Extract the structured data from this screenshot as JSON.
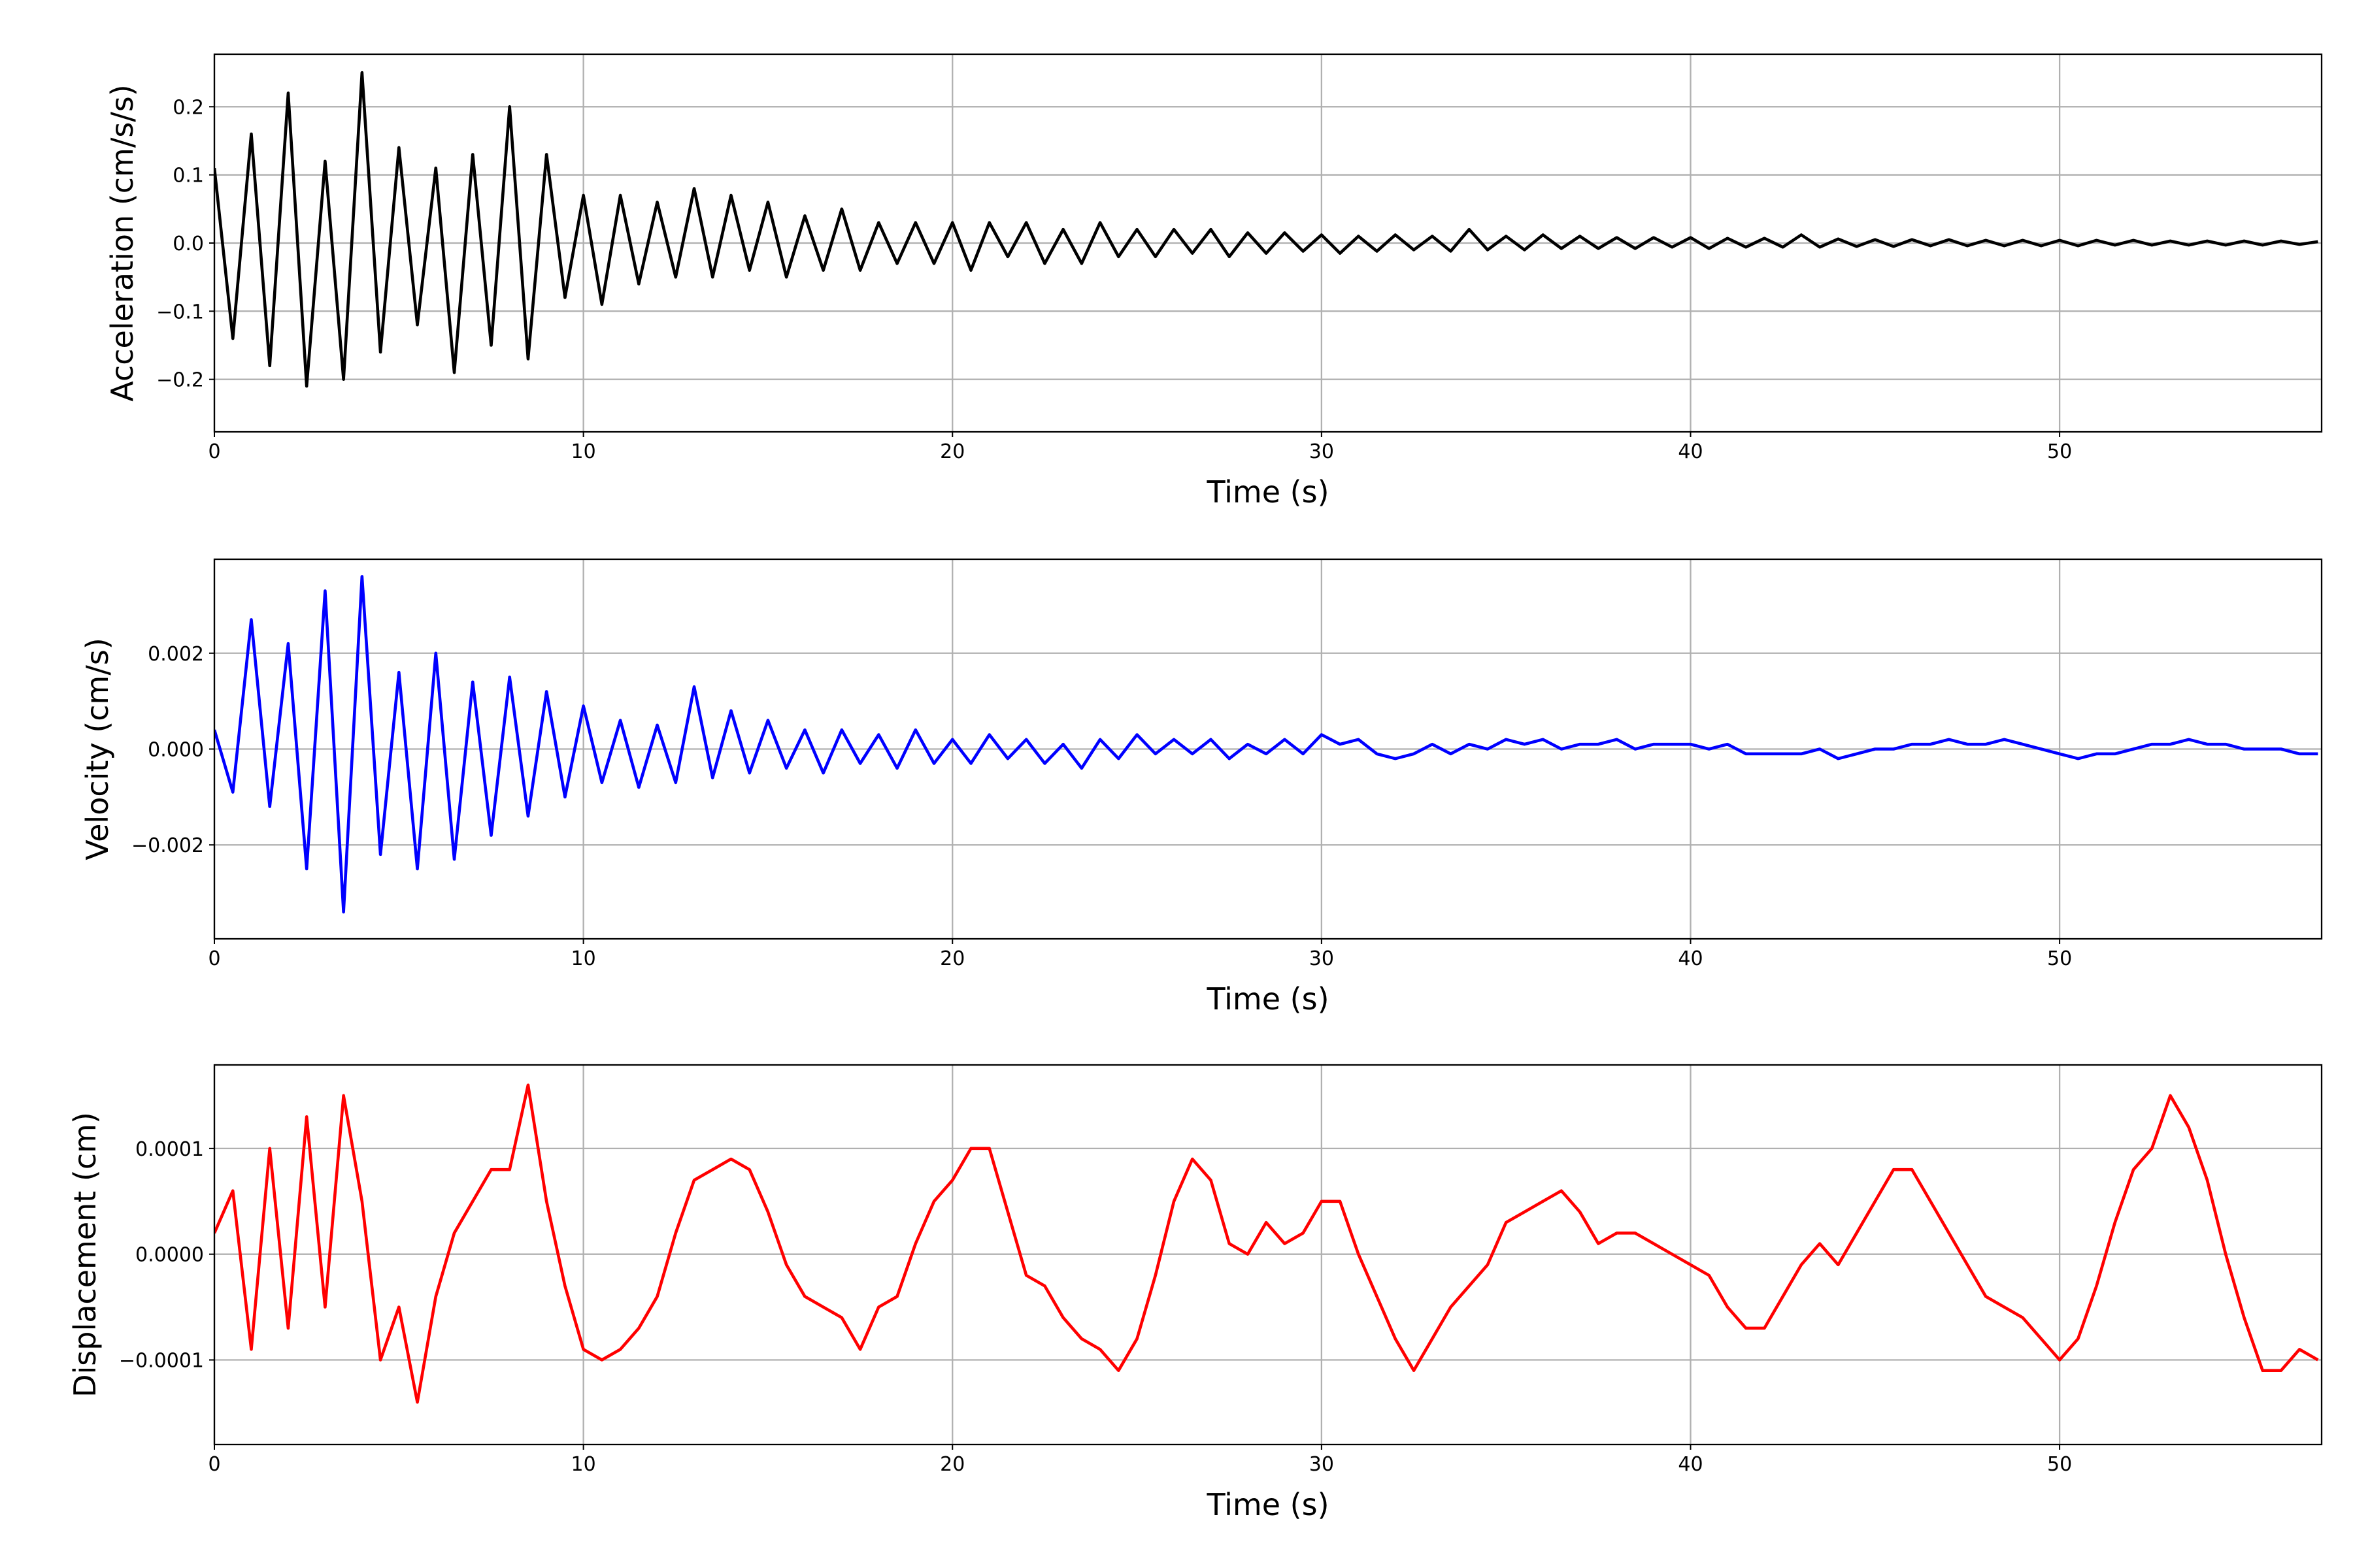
{
  "chart_data": [
    {
      "type": "line",
      "xlabel": "Time (s)",
      "ylabel": "Acceleration (cm/s/s)",
      "color": "#000000",
      "grid": true,
      "xlim": [
        0,
        57.1
      ],
      "xticks": [
        0,
        10,
        20,
        30,
        40,
        50
      ],
      "ylim": [
        -0.277,
        0.277
      ],
      "yticks": [
        {
          "value": -0.2,
          "label": "−0.2"
        },
        {
          "value": -0.1,
          "label": "−0.1"
        },
        {
          "value": 0,
          "label": "0.0"
        },
        0.1,
        0.2
      ],
      "x": [
        0,
        0.5,
        1,
        1.5,
        2,
        2.5,
        3,
        3.5,
        4,
        4.5,
        5,
        5.5,
        6,
        6.5,
        7,
        7.5,
        8,
        8.5,
        9,
        9.5,
        10,
        10.5,
        11,
        11.5,
        12,
        12.5,
        13,
        13.5,
        14,
        14.5,
        15,
        15.5,
        16,
        16.5,
        17,
        17.5,
        18,
        18.5,
        19,
        19.5,
        20,
        20.5,
        21,
        21.5,
        22,
        22.5,
        23,
        23.5,
        24,
        24.5,
        25,
        25.5,
        26,
        26.5,
        27,
        27.5,
        28,
        28.5,
        29,
        29.5,
        30,
        30.5,
        31,
        31.5,
        32,
        32.5,
        33,
        33.5,
        34,
        34.5,
        35,
        35.5,
        36,
        36.5,
        37,
        37.5,
        38,
        38.5,
        39,
        39.5,
        40,
        40.5,
        41,
        41.5,
        42,
        42.5,
        43,
        43.5,
        44,
        44.5,
        45,
        45.5,
        46,
        46.5,
        47,
        47.5,
        48,
        48.5,
        49,
        49.5,
        50,
        50.5,
        51,
        51.5,
        52,
        52.5,
        53,
        53.5,
        54,
        54.5,
        55,
        55.5,
        56,
        56.5,
        57
      ],
      "values": [
        0.11,
        -0.14,
        0.16,
        -0.18,
        0.22,
        -0.21,
        0.12,
        -0.2,
        0.25,
        -0.16,
        0.14,
        -0.12,
        0.11,
        -0.19,
        0.13,
        -0.15,
        0.2,
        -0.17,
        0.13,
        -0.08,
        0.07,
        -0.09,
        0.07,
        -0.06,
        0.06,
        -0.05,
        0.08,
        -0.05,
        0.07,
        -0.04,
        0.06,
        -0.05,
        0.04,
        -0.04,
        0.05,
        -0.04,
        0.03,
        -0.03,
        0.03,
        -0.03,
        0.03,
        -0.04,
        0.03,
        -0.02,
        0.03,
        -0.03,
        0.02,
        -0.03,
        0.03,
        -0.02,
        0.02,
        -0.02,
        0.02,
        -0.015,
        0.02,
        -0.02,
        0.015,
        -0.015,
        0.015,
        -0.012,
        0.012,
        -0.015,
        0.01,
        -0.012,
        0.012,
        -0.01,
        0.01,
        -0.012,
        0.02,
        -0.01,
        0.01,
        -0.01,
        0.012,
        -0.008,
        0.01,
        -0.008,
        0.008,
        -0.008,
        0.008,
        -0.006,
        0.008,
        -0.008,
        0.007,
        -0.006,
        0.007,
        -0.006,
        0.012,
        -0.006,
        0.006,
        -0.005,
        0.005,
        -0.005,
        0.005,
        -0.004,
        0.005,
        -0.004,
        0.004,
        -0.004,
        0.004,
        -0.004,
        0.004,
        -0.004,
        0.004,
        -0.003,
        0.004,
        -0.003,
        0.003,
        -0.003,
        0.003,
        -0.003,
        0.003,
        -0.003,
        0.003,
        -0.002,
        0.002
      ]
    },
    {
      "type": "line",
      "xlabel": "Time (s)",
      "ylabel": "Velocity (cm/s)",
      "color": "#0000ff",
      "grid": true,
      "xlim": [
        0,
        57.1
      ],
      "xticks": [
        0,
        10,
        20,
        30,
        40,
        50
      ],
      "ylim": [
        -0.00396,
        0.00396
      ],
      "yticks": [
        {
          "value": -0.002,
          "label": "−0.002"
        },
        {
          "value": 0,
          "label": "0.000"
        },
        0.002
      ],
      "x": [
        0,
        0.5,
        1,
        1.5,
        2,
        2.5,
        3,
        3.5,
        4,
        4.5,
        5,
        5.5,
        6,
        6.5,
        7,
        7.5,
        8,
        8.5,
        9,
        9.5,
        10,
        10.5,
        11,
        11.5,
        12,
        12.5,
        13,
        13.5,
        14,
        14.5,
        15,
        15.5,
        16,
        16.5,
        17,
        17.5,
        18,
        18.5,
        19,
        19.5,
        20,
        20.5,
        21,
        21.5,
        22,
        22.5,
        23,
        23.5,
        24,
        24.5,
        25,
        25.5,
        26,
        26.5,
        27,
        27.5,
        28,
        28.5,
        29,
        29.5,
        30,
        30.5,
        31,
        31.5,
        32,
        32.5,
        33,
        33.5,
        34,
        34.5,
        35,
        35.5,
        36,
        36.5,
        37,
        37.5,
        38,
        38.5,
        39,
        39.5,
        40,
        40.5,
        41,
        41.5,
        42,
        42.5,
        43,
        43.5,
        44,
        44.5,
        45,
        45.5,
        46,
        46.5,
        47,
        47.5,
        48,
        48.5,
        49,
        49.5,
        50,
        50.5,
        51,
        51.5,
        52,
        52.5,
        53,
        53.5,
        54,
        54.5,
        55,
        55.5,
        56,
        56.5,
        57
      ],
      "values": [
        0.0004,
        -0.0009,
        0.0027,
        -0.0012,
        0.0022,
        -0.0025,
        0.0033,
        -0.0034,
        0.0036,
        -0.0022,
        0.0016,
        -0.0025,
        0.002,
        -0.0023,
        0.0014,
        -0.0018,
        0.0015,
        -0.0014,
        0.0012,
        -0.001,
        0.0009,
        -0.0007,
        0.0006,
        -0.0008,
        0.0005,
        -0.0007,
        0.0013,
        -0.0006,
        0.0008,
        -0.0005,
        0.0006,
        -0.0004,
        0.0004,
        -0.0005,
        0.0004,
        -0.0003,
        0.0003,
        -0.0004,
        0.0004,
        -0.0003,
        0.0002,
        -0.0003,
        0.0003,
        -0.0002,
        0.0002,
        -0.0003,
        0.0001,
        -0.0004,
        0.0002,
        -0.0002,
        0.0003,
        -0.0001,
        0.0002,
        -0.0001,
        0.0002,
        -0.0002,
        0.0001,
        -0.0001,
        0.0002,
        -0.0001,
        0.0003,
        0.0001,
        0.0002,
        -0.0001,
        -0.0002,
        -0.0001,
        0.0001,
        -0.0001,
        0.0001,
        0,
        0.0002,
        0.0001,
        0.0002,
        0,
        0.0001,
        0.0001,
        0.0002,
        0,
        0.0001,
        0.0001,
        0.0001,
        0,
        0.0001,
        -0.0001,
        -0.0001,
        -0.0001,
        -0.0001,
        0,
        -0.0002,
        -0.0001,
        0,
        0,
        0.0001,
        0.0001,
        0.0002,
        0.0001,
        0.0001,
        0.0002,
        0.0001,
        0,
        -0.0001,
        -0.0002,
        -0.0001,
        -0.0001,
        0,
        0.0001,
        0.0001,
        0.0002,
        0.0001,
        0.0001,
        0,
        0,
        0,
        -0.0001,
        -0.0001
      ]
    },
    {
      "type": "line",
      "xlabel": "Time (s)",
      "ylabel": "Displacement (cm)",
      "color": "#ff0000",
      "grid": true,
      "xlim": [
        0,
        57.1
      ],
      "xticks": [
        0,
        10,
        20,
        30,
        40,
        50
      ],
      "ylim": [
        -0.00018,
        0.000179
      ],
      "yticks": [
        {
          "value": -0.0001,
          "label": "−0.0001"
        },
        {
          "value": 0,
          "label": "0.0000"
        },
        0.0001
      ],
      "x": [
        0,
        0.5,
        1,
        1.5,
        2,
        2.5,
        3,
        3.5,
        4,
        4.5,
        5,
        5.5,
        6,
        6.5,
        7,
        7.5,
        8,
        8.5,
        9,
        9.5,
        10,
        10.5,
        11,
        11.5,
        12,
        12.5,
        13,
        13.5,
        14,
        14.5,
        15,
        15.5,
        16,
        16.5,
        17,
        17.5,
        18,
        18.5,
        19,
        19.5,
        20,
        20.5,
        21,
        21.5,
        22,
        22.5,
        23,
        23.5,
        24,
        24.5,
        25,
        25.5,
        26,
        26.5,
        27,
        27.5,
        28,
        28.5,
        29,
        29.5,
        30,
        30.5,
        31,
        31.5,
        32,
        32.5,
        33,
        33.5,
        34,
        34.5,
        35,
        35.5,
        36,
        36.5,
        37,
        37.5,
        38,
        38.5,
        39,
        39.5,
        40,
        40.5,
        41,
        41.5,
        42,
        42.5,
        43,
        43.5,
        44,
        44.5,
        45,
        45.5,
        46,
        46.5,
        47,
        47.5,
        48,
        48.5,
        49,
        49.5,
        50,
        50.5,
        51,
        51.5,
        52,
        52.5,
        53,
        53.5,
        54,
        54.5,
        55,
        55.5,
        56,
        56.5,
        57
      ],
      "values": [
        2e-05,
        6e-05,
        -9e-05,
        0.0001,
        -7e-05,
        0.00013,
        -5e-05,
        0.00015,
        5e-05,
        -0.0001,
        -5e-05,
        -0.00014,
        -4e-05,
        2e-05,
        5e-05,
        8e-05,
        8e-05,
        0.00016,
        5e-05,
        -3e-05,
        -9e-05,
        -0.0001,
        -9e-05,
        -7e-05,
        -4e-05,
        2e-05,
        7e-05,
        8e-05,
        9e-05,
        8e-05,
        4e-05,
        -1e-05,
        -4e-05,
        -5e-05,
        -6e-05,
        -9e-05,
        -5e-05,
        -4e-05,
        1e-05,
        5e-05,
        7e-05,
        0.0001,
        0.0001,
        4e-05,
        -2e-05,
        -3e-05,
        -6e-05,
        -8e-05,
        -9e-05,
        -0.00011,
        -8e-05,
        -2e-05,
        5e-05,
        9e-05,
        7e-05,
        1e-05,
        0,
        3e-05,
        1e-05,
        2e-05,
        5e-05,
        5e-05,
        0,
        -4e-05,
        -8e-05,
        -0.00011,
        -8e-05,
        -5e-05,
        -3e-05,
        -1e-05,
        3e-05,
        4e-05,
        5e-05,
        6e-05,
        4e-05,
        1e-05,
        2e-05,
        2e-05,
        1e-05,
        0,
        -1e-05,
        -2e-05,
        -5e-05,
        -7e-05,
        -7e-05,
        -4e-05,
        -1e-05,
        1e-05,
        -1e-05,
        2e-05,
        5e-05,
        8e-05,
        8e-05,
        5e-05,
        2e-05,
        -1e-05,
        -4e-05,
        -5e-05,
        -6e-05,
        -8e-05,
        -0.0001,
        -8e-05,
        -3e-05,
        3e-05,
        8e-05,
        0.0001,
        0.00015,
        0.00012,
        7e-05,
        0,
        -6e-05,
        -0.00011,
        -0.00011,
        -9e-05,
        -0.0001
      ]
    }
  ]
}
